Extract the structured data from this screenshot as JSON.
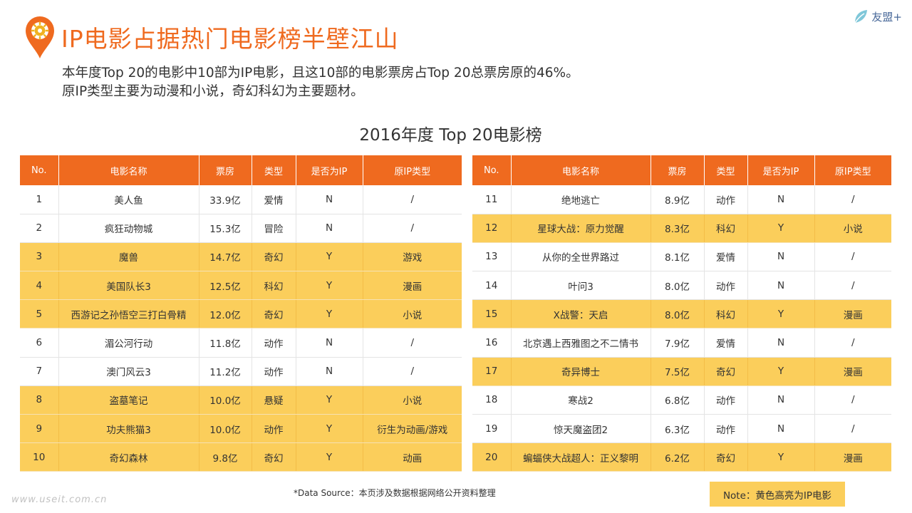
{
  "header": {
    "title": "IP电影占据热门电影榜半壁江山",
    "brand": "友盟+",
    "subtitle_lines": [
      "本年度Top 20的电影中10部为IP电影，且这10部的电影票房占Top 20总票房原的46%。",
      "原IP类型主要为动漫和小说，奇幻科幻为主要题材。"
    ]
  },
  "table_title": "2016年度 Top 20电影榜",
  "columns": [
    "No.",
    "电影名称",
    "票房",
    "类型",
    "是否为IP",
    "原IP类型"
  ],
  "movies_left": [
    {
      "no": "1",
      "name": "美人鱼",
      "box": "33.9亿",
      "genre": "爱情",
      "ip": "N",
      "ip_type": "/"
    },
    {
      "no": "2",
      "name": "疯狂动物城",
      "box": "15.3亿",
      "genre": "冒险",
      "ip": "N",
      "ip_type": "/"
    },
    {
      "no": "3",
      "name": "魔兽",
      "box": "14.7亿",
      "genre": "奇幻",
      "ip": "Y",
      "ip_type": "游戏"
    },
    {
      "no": "4",
      "name": "美国队长3",
      "box": "12.5亿",
      "genre": "科幻",
      "ip": "Y",
      "ip_type": "漫画"
    },
    {
      "no": "5",
      "name": "西游记之孙悟空三打白骨精",
      "box": "12.0亿",
      "genre": "奇幻",
      "ip": "Y",
      "ip_type": "小说"
    },
    {
      "no": "6",
      "name": "湄公河行动",
      "box": "11.8亿",
      "genre": "动作",
      "ip": "N",
      "ip_type": "/"
    },
    {
      "no": "7",
      "name": "澳门风云3",
      "box": "11.2亿",
      "genre": "动作",
      "ip": "N",
      "ip_type": "/"
    },
    {
      "no": "8",
      "name": "盗墓笔记",
      "box": "10.0亿",
      "genre": "悬疑",
      "ip": "Y",
      "ip_type": "小说"
    },
    {
      "no": "9",
      "name": "功夫熊猫3",
      "box": "10.0亿",
      "genre": "动作",
      "ip": "Y",
      "ip_type": "衍生为动画/游戏"
    },
    {
      "no": "10",
      "name": "奇幻森林",
      "box": "9.8亿",
      "genre": "奇幻",
      "ip": "Y",
      "ip_type": "动画"
    }
  ],
  "movies_right": [
    {
      "no": "11",
      "name": "绝地逃亡",
      "box": "8.9亿",
      "genre": "动作",
      "ip": "N",
      "ip_type": "/"
    },
    {
      "no": "12",
      "name": "星球大战：原力觉醒",
      "box": "8.3亿",
      "genre": "科幻",
      "ip": "Y",
      "ip_type": "小说"
    },
    {
      "no": "13",
      "name": "从你的全世界路过",
      "box": "8.1亿",
      "genre": "爱情",
      "ip": "N",
      "ip_type": "/"
    },
    {
      "no": "14",
      "name": "叶问3",
      "box": "8.0亿",
      "genre": "动作",
      "ip": "N",
      "ip_type": "/"
    },
    {
      "no": "15",
      "name": "X战警：天启",
      "box": "8.0亿",
      "genre": "科幻",
      "ip": "Y",
      "ip_type": "漫画"
    },
    {
      "no": "16",
      "name": "北京遇上西雅图之不二情书",
      "box": "7.9亿",
      "genre": "爱情",
      "ip": "N",
      "ip_type": "/"
    },
    {
      "no": "17",
      "name": "奇异博士",
      "box": "7.5亿",
      "genre": "奇幻",
      "ip": "Y",
      "ip_type": "漫画"
    },
    {
      "no": "18",
      "name": "寒战2",
      "box": "6.8亿",
      "genre": "动作",
      "ip": "N",
      "ip_type": "/"
    },
    {
      "no": "19",
      "name": "惊天魔盗团2",
      "box": "6.3亿",
      "genre": "动作",
      "ip": "N",
      "ip_type": "/"
    },
    {
      "no": "20",
      "name": "蝙蝠侠大战超人：正义黎明",
      "box": "6.2亿",
      "genre": "奇幻",
      "ip": "Y",
      "ip_type": "漫画"
    }
  ],
  "footer": {
    "source": "*Data Source：本页涉及数据根据网络公开资料整理",
    "watermark": "www.useit.com.cn",
    "note": "Note：黄色高亮为IP电影"
  },
  "colors": {
    "accent": "#ef6a1f",
    "highlight": "#fbce5b",
    "brand": "#4a6a9a"
  }
}
